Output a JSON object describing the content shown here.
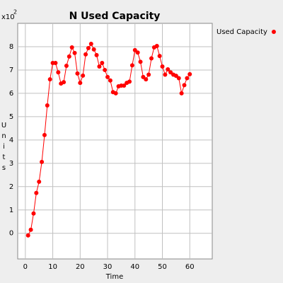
{
  "chart_data": {
    "type": "line",
    "title": "N Used Capacity",
    "x_label": "Time",
    "y_label": "Units",
    "y_multiplier": "x10",
    "y_multiplier_exp": "2",
    "x": [
      1,
      2,
      3,
      4,
      5,
      6,
      7,
      8,
      9,
      10,
      11,
      12,
      13,
      14,
      15,
      16,
      17,
      18,
      19,
      20,
      21,
      22,
      23,
      24,
      25,
      26,
      27,
      28,
      29,
      30,
      31,
      32,
      33,
      34,
      35,
      36,
      37,
      38,
      39,
      40,
      41,
      42,
      43,
      44,
      45,
      46,
      47,
      48,
      49,
      50,
      51,
      52,
      53,
      54,
      55,
      56,
      57,
      58,
      59,
      60
    ],
    "series": [
      {
        "name": "Used Capacity",
        "color": "#ff0000",
        "values": [
          -0.09,
          0.15,
          0.85,
          1.73,
          2.21,
          3.06,
          4.21,
          5.48,
          6.6,
          7.3,
          7.3,
          6.9,
          6.42,
          6.48,
          7.18,
          7.58,
          7.97,
          7.73,
          6.85,
          6.45,
          6.76,
          7.67,
          7.94,
          8.12,
          7.88,
          7.64,
          7.15,
          7.3,
          7.0,
          6.7,
          6.55,
          6.05,
          6.0,
          6.3,
          6.33,
          6.33,
          6.45,
          6.5,
          7.2,
          7.85,
          7.75,
          7.35,
          6.7,
          6.6,
          6.8,
          7.5,
          7.97,
          8.03,
          7.6,
          7.15,
          6.8,
          7.03,
          6.9,
          6.8,
          6.75,
          6.65,
          6.0,
          6.35,
          6.65,
          6.82
        ]
      }
    ],
    "xlim": [
      -2.8,
      68.2
    ],
    "ylim": [
      -1.1,
      9.0
    ],
    "xticks": [
      0,
      10,
      20,
      30,
      40,
      50,
      60
    ],
    "yticks": [
      0,
      1,
      2,
      3,
      4,
      5,
      6,
      7,
      8
    ],
    "grid": true
  }
}
